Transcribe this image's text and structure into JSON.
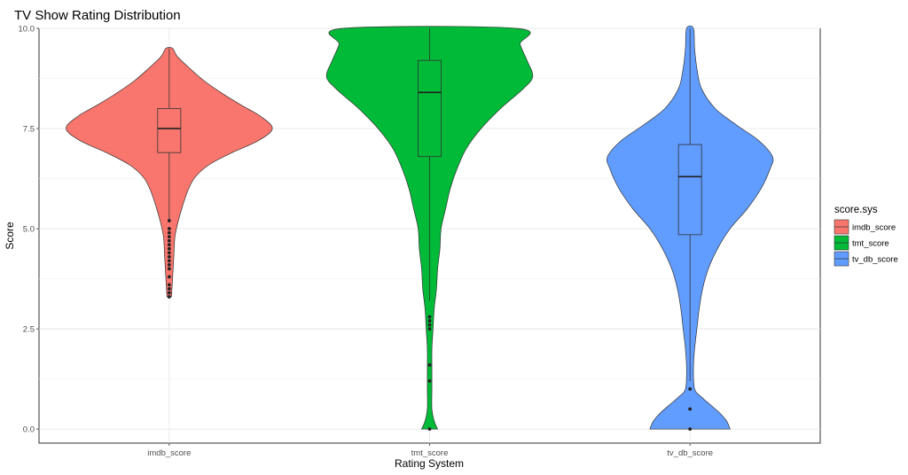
{
  "chart_data": {
    "type": "violin",
    "title": "TV Show Rating Distribution",
    "xlabel": "Rating System",
    "ylabel": "Score",
    "ylim": [
      -0.35,
      10.0
    ],
    "yticks": [
      "0.0",
      "2.5",
      "5.0",
      "7.5",
      "10.0"
    ],
    "ytick_values": [
      0,
      2.5,
      5,
      7.5,
      10
    ],
    "categories": [
      "imdb_score",
      "tmt_score",
      "tv_db_score"
    ],
    "grid": true,
    "legend": {
      "title": "score.sys",
      "position": "right",
      "entries": [
        "imdb_score",
        "tmt_score",
        "tv_db_score"
      ]
    },
    "series": [
      {
        "category": "imdb_score",
        "color": "#F8766D",
        "box": {
          "q1": 6.9,
          "median": 7.5,
          "q3": 8.0,
          "whisker_low": 5.2,
          "whisker_high": 9.5
        },
        "outliers": [
          5.2,
          5.0,
          4.9,
          4.8,
          4.7,
          4.6,
          4.5,
          4.4,
          4.3,
          4.2,
          4.1,
          4.0,
          3.8,
          3.6,
          3.5,
          3.4,
          3.3
        ],
        "density": [
          [
            3.3,
            0.02
          ],
          [
            3.8,
            0.03
          ],
          [
            4.3,
            0.04
          ],
          [
            4.8,
            0.05
          ],
          [
            5.2,
            0.08
          ],
          [
            5.6,
            0.12
          ],
          [
            6.0,
            0.17
          ],
          [
            6.3,
            0.23
          ],
          [
            6.6,
            0.35
          ],
          [
            6.9,
            0.55
          ],
          [
            7.2,
            0.78
          ],
          [
            7.5,
            0.9
          ],
          [
            7.8,
            0.8
          ],
          [
            8.1,
            0.62
          ],
          [
            8.4,
            0.45
          ],
          [
            8.7,
            0.3
          ],
          [
            9.0,
            0.18
          ],
          [
            9.3,
            0.07
          ],
          [
            9.5,
            0.03
          ]
        ]
      },
      {
        "category": "tmt_score",
        "color": "#00BA38",
        "box": {
          "q1": 6.8,
          "median": 8.4,
          "q3": 9.2,
          "whisker_low": 3.2,
          "whisker_high": 10.0
        },
        "outliers": [
          2.8,
          2.7,
          2.6,
          2.5,
          1.6,
          1.2,
          0.0
        ],
        "density": [
          [
            0.0,
            0.07
          ],
          [
            0.2,
            0.04
          ],
          [
            0.5,
            0.02
          ],
          [
            1.0,
            0.02
          ],
          [
            1.5,
            0.02
          ],
          [
            2.0,
            0.02
          ],
          [
            2.5,
            0.03
          ],
          [
            3.0,
            0.04
          ],
          [
            3.5,
            0.06
          ],
          [
            4.0,
            0.07
          ],
          [
            4.5,
            0.09
          ],
          [
            5.0,
            0.1
          ],
          [
            5.5,
            0.14
          ],
          [
            6.0,
            0.18
          ],
          [
            6.5,
            0.24
          ],
          [
            7.0,
            0.32
          ],
          [
            7.5,
            0.45
          ],
          [
            8.0,
            0.62
          ],
          [
            8.5,
            0.82
          ],
          [
            8.8,
            0.9
          ],
          [
            9.2,
            0.85
          ],
          [
            9.6,
            0.79
          ],
          [
            10.0,
            0.76
          ]
        ]
      },
      {
        "category": "tv_db_score",
        "color": "#619CFF",
        "box": {
          "q1": 4.85,
          "median": 6.3,
          "q3": 7.1,
          "whisker_low": 1.2,
          "whisker_high": 10.0
        },
        "outliers": [
          1.0,
          0.5,
          0.0
        ],
        "density": [
          [
            0.0,
            0.35
          ],
          [
            0.2,
            0.32
          ],
          [
            0.4,
            0.26
          ],
          [
            0.6,
            0.18
          ],
          [
            0.8,
            0.1
          ],
          [
            1.0,
            0.04
          ],
          [
            1.5,
            0.03
          ],
          [
            2.0,
            0.04
          ],
          [
            2.5,
            0.06
          ],
          [
            3.0,
            0.08
          ],
          [
            3.5,
            0.11
          ],
          [
            4.0,
            0.16
          ],
          [
            4.5,
            0.24
          ],
          [
            5.0,
            0.35
          ],
          [
            5.5,
            0.5
          ],
          [
            6.0,
            0.62
          ],
          [
            6.5,
            0.7
          ],
          [
            6.8,
            0.72
          ],
          [
            7.2,
            0.6
          ],
          [
            7.6,
            0.4
          ],
          [
            8.0,
            0.22
          ],
          [
            8.5,
            0.1
          ],
          [
            9.0,
            0.06
          ],
          [
            9.5,
            0.04
          ],
          [
            10.0,
            0.03
          ]
        ]
      }
    ]
  }
}
